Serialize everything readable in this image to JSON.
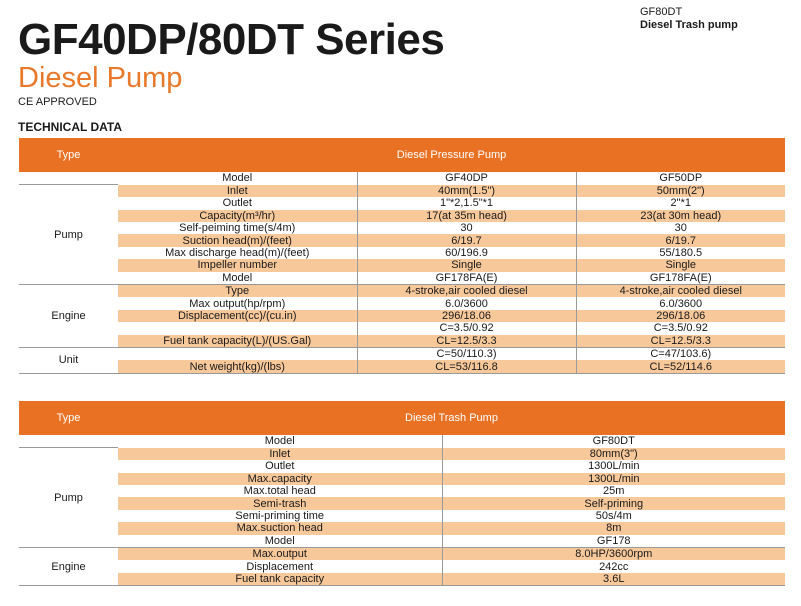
{
  "header": {
    "title": "GF40DP/80DT Series",
    "subtitle": "Diesel Pump",
    "ce": "CE APPROVED",
    "section": "TECHNICAL DATA",
    "top_right_model": "GF80DT",
    "top_right_desc": "Diesel Trash pump"
  },
  "table1": {
    "type_label": "Type",
    "type_value": "Diesel Pressure Pump",
    "model_label": "Model",
    "model_values": [
      "GF40DP",
      "GF50DP"
    ],
    "groups": [
      {
        "name": "Pump",
        "rows": [
          {
            "label": "Inlet",
            "v1": "40mm(1.5\")",
            "v2": "50mm(2\")"
          },
          {
            "label": "Outlet",
            "v1": "1\"*2,1.5\"*1",
            "v2": "2\"*1"
          },
          {
            "label": "Capacity(m³/hr)",
            "v1": "17(at 35m head)",
            "v2": "23(at 30m head)"
          },
          {
            "label": "Self-peiming time(s/4m)",
            "v1": "30",
            "v2": "30"
          },
          {
            "label": "Suction head(m)/(feet)",
            "v1": "6/19.7",
            "v2": "6/19.7"
          },
          {
            "label": "Max discharge head(m)/(feet)",
            "v1": "60/196.9",
            "v2": "55/180.5"
          },
          {
            "label": "Impeller number",
            "v1": "Single",
            "v2": "Single"
          },
          {
            "label": "Model",
            "v1": "GF178FA(E)",
            "v2": "GF178FA(E)"
          }
        ]
      },
      {
        "name": "Engine",
        "rows": [
          {
            "label": "Type",
            "v1": "4-stroke,air cooled diesel",
            "v2": "4-stroke,air cooled diesel"
          },
          {
            "label": "Max output(hp/rpm)",
            "v1": "6.0/3600",
            "v2": "6.0/3600"
          },
          {
            "label": "Displacement(cc)/(cu.in)",
            "v1": "296/18.06",
            "v2": "296/18.06"
          },
          {
            "label": "",
            "v1": "C=3.5/0.92",
            "v2": "C=3.5/0.92"
          },
          {
            "label": "Fuel tank capacity(L)/(US.Gal)",
            "v1": "CL=12.5/3.3",
            "v2": "CL=12.5/3.3"
          }
        ]
      },
      {
        "name": "Unit",
        "rows": [
          {
            "label": "",
            "v1": "C=50/110.3)",
            "v2": "C=47/103.6)"
          },
          {
            "label": "Net weight(kg)/(lbs)",
            "v1": "CL=53/116.8",
            "v2": "CL=52/114.6"
          }
        ]
      }
    ]
  },
  "table2": {
    "type_label": "Type",
    "type_value": "Diesel Trash Pump",
    "model_label": "Model",
    "model_value": "GF80DT",
    "groups": [
      {
        "name": "Pump",
        "rows": [
          {
            "label": "Inlet",
            "v": "80mm(3\")"
          },
          {
            "label": "Outlet",
            "v": "1300L/min"
          },
          {
            "label": "Max.capacity",
            "v": "1300L/min"
          },
          {
            "label": "Max.total head",
            "v": "25m"
          },
          {
            "label": "Semi-trash",
            "v": "Self-priming"
          },
          {
            "label": "Semi-priming time",
            "v": "50s/4m"
          },
          {
            "label": "Max.suction head",
            "v": "8m"
          },
          {
            "label": "Model",
            "v": "GF178"
          }
        ]
      },
      {
        "name": "Engine",
        "rows": [
          {
            "label": "Max.output",
            "v": "8.0HP/3600rpm"
          },
          {
            "label": "Displacement",
            "v": "242cc"
          },
          {
            "label": "Fuel tank capacity",
            "v": "3.6L"
          }
        ]
      }
    ]
  }
}
